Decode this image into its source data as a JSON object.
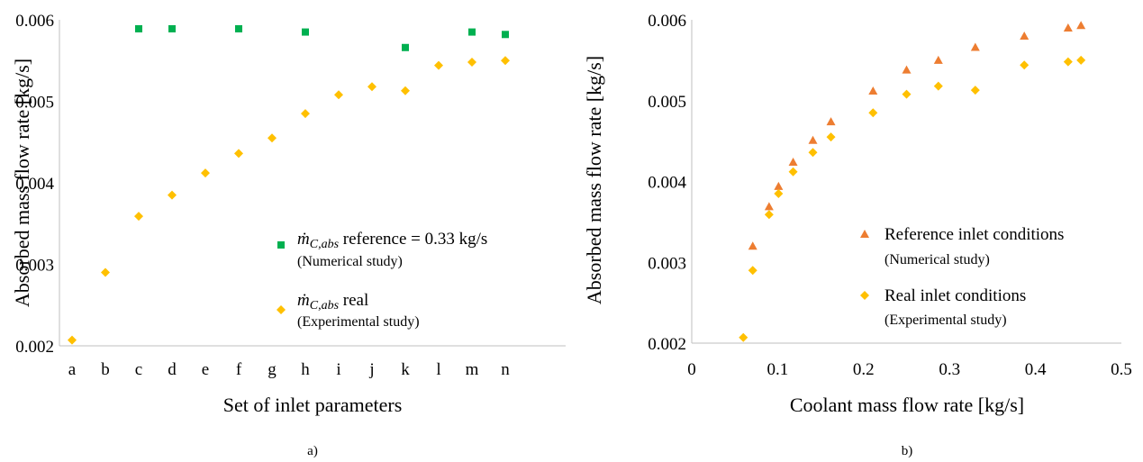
{
  "chart_data": [
    {
      "type": "scatter",
      "panel_label": "a)",
      "xlabel": "Set of inlet parameters",
      "ylabel": "Absorbed mass flow rate [kg/s]",
      "categories": [
        "a",
        "b",
        "c",
        "d",
        "e",
        "f",
        "g",
        "h",
        "i",
        "j",
        "k",
        "l",
        "m",
        "n"
      ],
      "ylim": [
        0.002,
        0.006
      ],
      "yticks": [
        "0.002",
        "0.003",
        "0.004",
        "0.005",
        "0.006"
      ],
      "grid": false,
      "legend_position": "center-right",
      "series": [
        {
          "name": "ṁC,abs reference = 0.33 kg/s",
          "legend_prefix": "ṁ",
          "legend_sub": "C,abs",
          "legend_rest": " reference = 0.33 kg/s",
          "legend_note": "(Numerical study)",
          "marker": "square",
          "color": "#00b050",
          "values": [
            null,
            null,
            0.00589,
            0.00589,
            null,
            0.00589,
            null,
            0.00585,
            null,
            null,
            0.00566,
            null,
            0.00585,
            0.00582
          ]
        },
        {
          "name": "ṁC,abs real",
          "legend_prefix": "ṁ",
          "legend_sub": "C,abs",
          "legend_rest": " real",
          "legend_note": "(Experimental study)",
          "marker": "diamond",
          "color": "#ffc000",
          "values": [
            0.00207,
            0.0029,
            0.00359,
            0.00385,
            0.00412,
            0.00436,
            0.00455,
            0.00485,
            0.00508,
            0.00518,
            0.00513,
            0.00544,
            0.00548,
            0.0055
          ]
        }
      ]
    },
    {
      "type": "scatter",
      "panel_label": "b)",
      "xlabel": "Coolant mass flow rate [kg/s]",
      "ylabel": "Absorbed mass flow rate [kg/s]",
      "xlim": [
        0,
        0.5
      ],
      "xticks": [
        "0",
        "0.1",
        "0.2",
        "0.3",
        "0.4",
        "0.5"
      ],
      "ylim": [
        0.002,
        0.006
      ],
      "yticks": [
        "0.002",
        "0.003",
        "0.004",
        "0.005",
        "0.006"
      ],
      "grid": false,
      "legend_position": "center-right",
      "series": [
        {
          "name": "Reference inlet conditions",
          "legend_note": "(Numerical study)",
          "marker": "triangle",
          "color": "#ed7d31",
          "x": [
            0.071,
            0.09,
            0.101,
            0.118,
            0.141,
            0.162,
            0.211,
            0.25,
            0.287,
            0.33,
            0.387,
            0.438,
            0.453
          ],
          "y": [
            0.0032,
            0.00369,
            0.00394,
            0.00424,
            0.00451,
            0.00474,
            0.00512,
            0.00538,
            0.0055,
            0.00566,
            0.0058,
            0.0059,
            0.00593
          ]
        },
        {
          "name": "Real inlet conditions",
          "legend_note": "(Experimental study)",
          "marker": "diamond",
          "color": "#ffc000",
          "x": [
            0.06,
            0.071,
            0.09,
            0.101,
            0.118,
            0.141,
            0.162,
            0.211,
            0.25,
            0.287,
            0.33,
            0.387,
            0.438,
            0.453
          ],
          "y": [
            0.00207,
            0.0029,
            0.00359,
            0.00385,
            0.00412,
            0.00436,
            0.00455,
            0.00485,
            0.00508,
            0.00518,
            0.00513,
            0.00544,
            0.00548,
            0.0055
          ]
        }
      ]
    }
  ]
}
